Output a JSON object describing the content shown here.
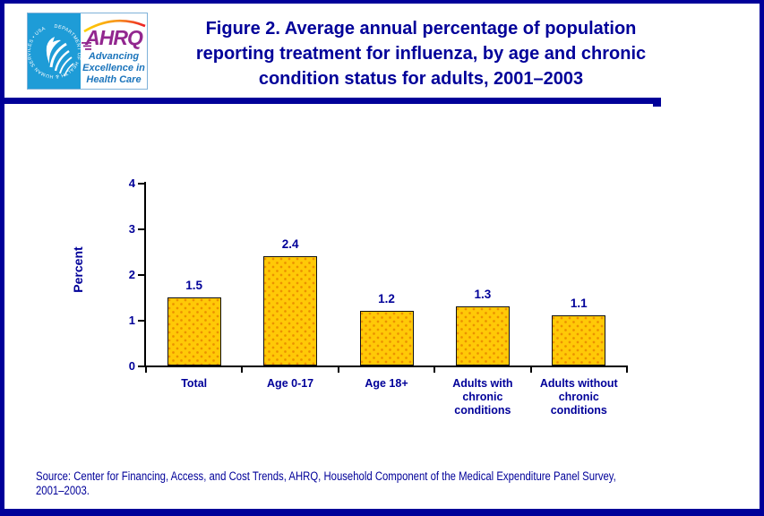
{
  "header": {
    "hhs_logo": {
      "circle_text": "DEPARTMENT OF HEALTH & HUMAN SERVICES • USA"
    },
    "ahrq_logo": {
      "acronym": "AHRQ",
      "tagline_lines": [
        "Advancing",
        "Excellence in",
        "Health Care"
      ]
    },
    "title_lines": [
      "Figure 2. Average annual percentage of population",
      "reporting treatment for influenza, by age and chronic",
      "condition status for adults, 2001–2003"
    ]
  },
  "chart_data": {
    "type": "bar",
    "title": "Figure 2. Average annual percentage of population reporting treatment for influenza, by age and chronic condition status for adults, 2001–2003",
    "xlabel": "",
    "ylabel": "Percent",
    "ylim": [
      0,
      4
    ],
    "yticks": [
      0,
      1,
      2,
      3,
      4
    ],
    "grid": false,
    "legend_position": "none",
    "categories": [
      "Total",
      "Age 0-17",
      "Age 18+",
      "Adults with chronic conditions",
      "Adults without chronic conditions"
    ],
    "category_label_lines": [
      [
        "Total"
      ],
      [
        "Age 0-17"
      ],
      [
        "Age 18+"
      ],
      [
        "Adults with",
        "chronic",
        "conditions"
      ],
      [
        "Adults without",
        "chronic",
        "conditions"
      ]
    ],
    "values": [
      1.5,
      2.4,
      1.2,
      1.3,
      1.1
    ],
    "value_labels": [
      "1.5",
      "2.4",
      "1.2",
      "1.3",
      "1.1"
    ],
    "bar_color": "#FFC907"
  },
  "footer": {
    "source_lines": [
      "Source: Center for Financing, Access, and Cost Trends, AHRQ, Household Component of the Medical Expenditure Panel Survey,",
      "2001–2003."
    ]
  },
  "colors": {
    "navy": "#000099",
    "hhs_blue": "#1E9CD7",
    "ahrq_purple": "#92278F",
    "tagline_blue": "#1C75BC",
    "bar_gold": "#FFC907"
  }
}
